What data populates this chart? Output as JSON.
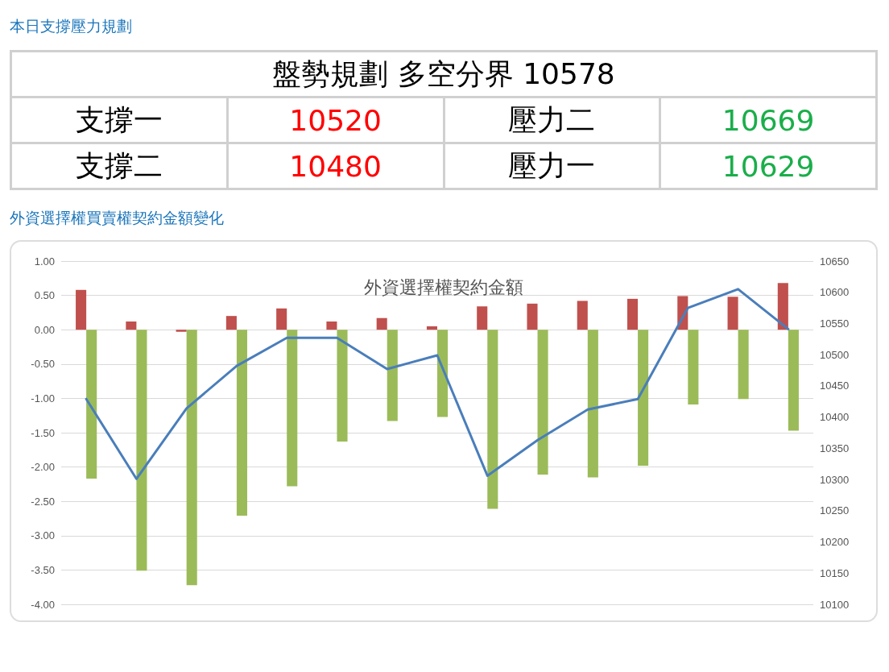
{
  "chart_data": [
    {
      "type": "other",
      "title": "本日支撐壓力規劃",
      "annotations": [
        "盤勢規劃 多空分界 10578",
        "支撐一",
        "10520",
        "壓力二",
        "10669",
        "支撐二",
        "10480",
        "壓力一",
        "10629"
      ]
    },
    {
      "type": "bar",
      "title": "外資選擇權契約金額",
      "annotations": [
        "外資選擇權買賣權契約金額變化"
      ],
      "categories": [
        null,
        null,
        null,
        null,
        null,
        null,
        null,
        null,
        null,
        null,
        null,
        null,
        null,
        null,
        null
      ],
      "series": [
        {
          "color": "#c0504d",
          "values": [
            0.58,
            0.12,
            -0.03,
            0.2,
            0.31,
            0.12,
            0.17,
            0.05,
            0.34,
            0.38,
            0.42,
            0.45,
            0.49,
            0.48,
            0.68
          ]
        },
        {
          "color": "#9bbb59",
          "values": [
            -2.17,
            -3.51,
            -3.72,
            -2.71,
            -2.28,
            -1.63,
            -1.33,
            -1.27,
            -2.61,
            -2.11,
            -2.15,
            -1.98,
            -1.09,
            -1.01,
            -1.47
          ]
        },
        {
          "type": "line",
          "axis": "y2",
          "color": "#4a7ebb",
          "values": [
            10429,
            10301,
            10414,
            10482,
            10527,
            10527,
            10477,
            10499,
            10306,
            10363,
            10412,
            10429,
            10575,
            10605,
            10541
          ]
        }
      ],
      "ylim": [
        -4,
        1
      ],
      "yticks": [
        {
          "value": -4,
          "label": "-4.00"
        },
        {
          "value": -3.5,
          "label": "-3.50"
        },
        {
          "value": -3,
          "label": "-3.00"
        },
        {
          "value": -2.5,
          "label": "-2.50"
        },
        {
          "value": -2,
          "label": "-2.00"
        },
        {
          "value": -1.5,
          "label": "-1.50"
        },
        {
          "value": -1,
          "label": "-1.00"
        },
        {
          "value": -0.5,
          "label": "-0.50"
        },
        {
          "value": 0,
          "label": "0.00"
        },
        {
          "value": 0.5,
          "label": "0.50"
        },
        {
          "value": 1,
          "label": "1.00"
        }
      ],
      "y2lim": [
        10100,
        10650
      ],
      "y2ticks": [
        10100,
        10150,
        10200,
        10250,
        10300,
        10350,
        10400,
        10450,
        10500,
        10550,
        10600,
        10650
      ],
      "grid": "y",
      "tick_labels": "y",
      "marker": "none",
      "line_style": "solid"
    }
  ]
}
